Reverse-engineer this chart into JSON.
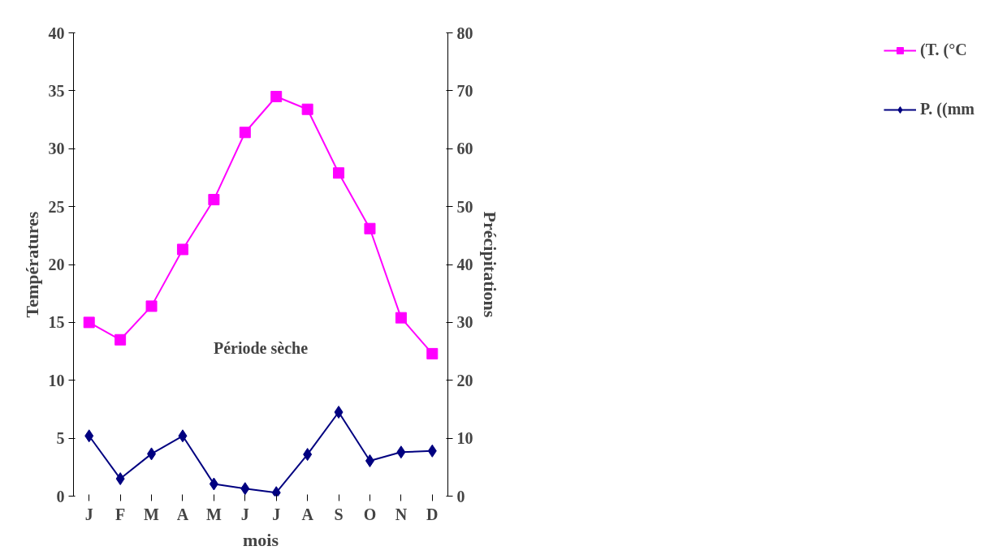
{
  "chart_data": {
    "type": "line",
    "xlabel": "mois",
    "ylabel": "Températures",
    "y2label": "Précipitations",
    "categories": [
      "J",
      "F",
      "M",
      "A",
      "M",
      "J",
      "J",
      "A",
      "S",
      "O",
      "N",
      "D"
    ],
    "series": [
      {
        "name": "(T. (°C",
        "color": "#ff00ff",
        "marker": "square",
        "values": [
          15.0,
          13.5,
          16.4,
          21.3,
          25.6,
          31.4,
          34.5,
          33.4,
          27.9,
          23.1,
          15.4,
          12.3
        ]
      },
      {
        "name": "P. ((mm",
        "color": "#000080",
        "marker": "diamond",
        "axis": "y2",
        "values": [
          10.4,
          3.0,
          7.3,
          10.4,
          2.1,
          1.3,
          0.6,
          7.2,
          14.5,
          6.1,
          7.6,
          7.8
        ]
      }
    ],
    "ylim": [
      0,
      40
    ],
    "yticks": [
      0,
      5,
      10,
      15,
      20,
      25,
      30,
      35,
      40
    ],
    "y2lim": [
      0,
      80
    ],
    "y2ticks": [
      0,
      10,
      20,
      30,
      40,
      50,
      60,
      70,
      80
    ],
    "grid": false,
    "legend": "right",
    "annotations": [
      "Période sèche"
    ]
  }
}
